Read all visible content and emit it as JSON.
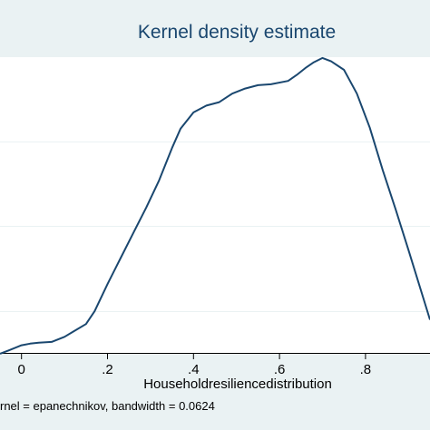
{
  "chart_data": {
    "type": "line",
    "title": "Kernel density estimate",
    "xlabel": "Householdresiliencedistribution",
    "ylabel": "",
    "note": "rnel = epanechnikov, bandwidth = 0.0624",
    "xlim": [
      -0.05,
      0.95
    ],
    "ylim": [
      0,
      3.5
    ],
    "xticks": [
      0,
      0.2,
      0.4,
      0.6,
      0.8
    ],
    "xtick_labels": [
      "0",
      ".2",
      ".4",
      ".6",
      ".8"
    ],
    "ygrid": [
      0.5,
      1.5,
      2.5,
      3.5
    ],
    "grid": true,
    "series": [
      {
        "color": "#1a476f",
        "x": [
          -0.05,
          -0.03,
          0.0,
          0.02,
          0.04,
          0.07,
          0.1,
          0.12,
          0.15,
          0.17,
          0.2,
          0.23,
          0.26,
          0.29,
          0.32,
          0.35,
          0.37,
          0.4,
          0.43,
          0.46,
          0.49,
          0.52,
          0.55,
          0.58,
          0.62,
          0.64,
          0.66,
          0.68,
          0.7,
          0.72,
          0.75,
          0.78,
          0.81,
          0.84,
          0.87,
          0.9,
          0.95
        ],
        "y": [
          0.0,
          0.04,
          0.1,
          0.12,
          0.13,
          0.14,
          0.2,
          0.26,
          0.35,
          0.5,
          0.82,
          1.12,
          1.42,
          1.72,
          2.04,
          2.42,
          2.65,
          2.84,
          2.92,
          2.96,
          3.06,
          3.12,
          3.16,
          3.17,
          3.21,
          3.28,
          3.36,
          3.43,
          3.48,
          3.44,
          3.34,
          3.06,
          2.66,
          2.16,
          1.7,
          1.22,
          0.4
        ]
      }
    ]
  }
}
